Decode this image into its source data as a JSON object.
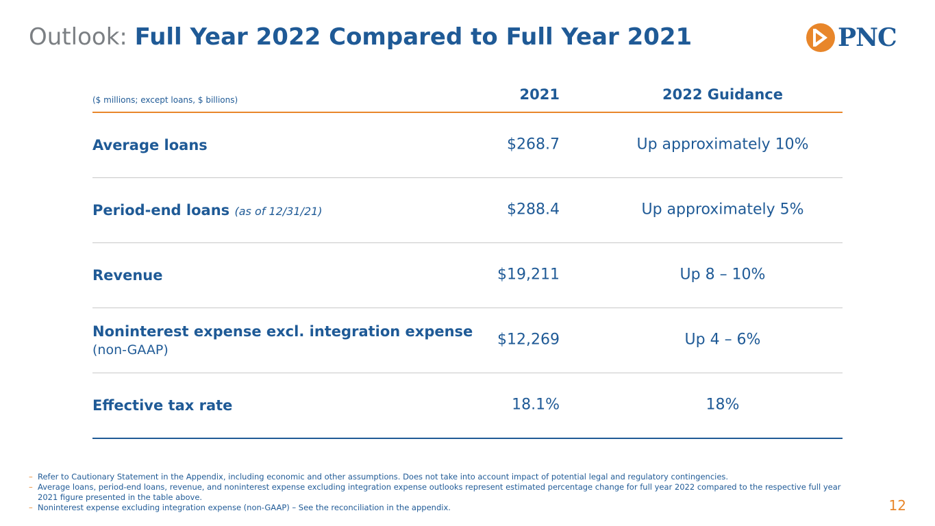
{
  "title": {
    "prefix": "Outlook:",
    "main": "Full Year 2022 Compared to Full Year 2021"
  },
  "logo": {
    "wordmark": "PNC",
    "icon": "pnc-arrow-logo-icon",
    "color": "#e8862a"
  },
  "table": {
    "units_note": "($ millions; except loans, $ billions)",
    "col_2021": "2021",
    "col_guidance": "2022 Guidance",
    "rows": [
      {
        "label": "Average loans",
        "note": "",
        "sub": "",
        "value_2021": "$268.7",
        "guidance": "Up approximately 10%"
      },
      {
        "label": "Period-end loans",
        "note": "(as of 12/31/21)",
        "sub": "",
        "value_2021": "$288.4",
        "guidance": "Up approximately 5%"
      },
      {
        "label": "Revenue",
        "note": "",
        "sub": "",
        "value_2021": "$19,211",
        "guidance": "Up 8 – 10%"
      },
      {
        "label": "Noninterest expense excl. integration expense",
        "note": "",
        "sub": "(non-GAAP)",
        "value_2021": "$12,269",
        "guidance": "Up 4 – 6%"
      },
      {
        "label": "Effective tax rate",
        "note": "",
        "sub": "",
        "value_2021": "18.1%",
        "guidance": "18%"
      }
    ]
  },
  "footnotes": [
    "Refer to Cautionary Statement in the Appendix, including economic and other assumptions. Does not take into account impact of potential legal and regulatory contingencies.",
    "Average loans, period-end loans, revenue, and noninterest expense excluding integration expense outlooks represent estimated percentage change for full year 2022 compared to the respective full year 2021 figure presented in the table above.",
    "Noninterest expense excluding integration expense (non-GAAP) – See the reconciliation in the appendix."
  ],
  "page_number": "12",
  "colors": {
    "brand_blue": "#1f5a96",
    "brand_orange": "#e8862a",
    "gray": "#7b7f83"
  }
}
